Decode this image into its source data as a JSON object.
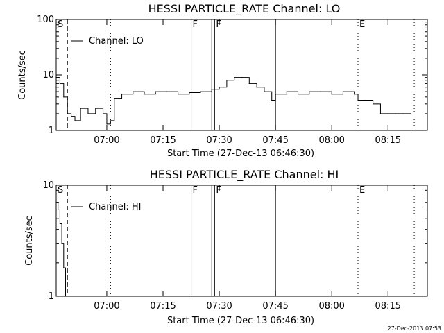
{
  "chart_data": [
    {
      "type": "line",
      "title": "HESSI PARTICLE_RATE Channel: LO",
      "xlabel": "Start Time (27-Dec-13 06:46:30)",
      "ylabel": "Counts/sec",
      "yscale": "log",
      "ylim": [
        1,
        100
      ],
      "xlim": [
        "06:46:30",
        "08:25:30"
      ],
      "x_tick_labels": [
        "07:00",
        "07:15",
        "07:30",
        "07:45",
        "08:00",
        "08:15"
      ],
      "y_tick_labels": [
        "1",
        "10",
        "100"
      ],
      "legend": {
        "label": "Channel: LO",
        "placement": "top-left"
      },
      "markers": [
        {
          "label": "S",
          "time": "06:46:30",
          "style": "solid"
        },
        {
          "label": "",
          "time": "06:49:30",
          "style": "dashed"
        },
        {
          "label": "",
          "time": "07:01:00",
          "style": "dotted"
        },
        {
          "label": "F",
          "time": "07:22:30",
          "style": "solid"
        },
        {
          "label": "",
          "time": "07:28:00",
          "style": "solid"
        },
        {
          "label": "F",
          "time": "07:28:45",
          "style": "solid"
        },
        {
          "label": "",
          "time": "07:45:00",
          "style": "solid"
        },
        {
          "label": "E",
          "time": "08:07:00",
          "style": "dotted"
        },
        {
          "label": "",
          "time": "08:22:00",
          "style": "dotted"
        }
      ],
      "series": [
        {
          "x": [
            "06:46:30",
            "06:47:30",
            "06:48:30",
            "06:49:30",
            "06:50:30",
            "06:51:30",
            "06:53:00",
            "06:55:00",
            "06:57:00",
            "06:59:00",
            "07:00:00",
            "07:01:00",
            "07:02:00",
            "07:04:00",
            "07:07:00",
            "07:10:00",
            "07:13:00",
            "07:16:00",
            "07:19:00",
            "07:22:00",
            "07:25:00",
            "07:28:00",
            "07:30:00",
            "07:32:00",
            "07:34:00",
            "07:36:00",
            "07:38:00",
            "07:40:00",
            "07:42:00",
            "07:44:00",
            "07:45:00",
            "07:48:00",
            "07:51:00",
            "07:54:00",
            "07:57:00",
            "08:00:00",
            "08:03:00",
            "08:06:00",
            "08:07:00",
            "08:09:00",
            "08:11:00",
            "08:13:00",
            "08:15:00",
            "08:17:00",
            "08:19:00",
            "08:21:00"
          ],
          "y": [
            9,
            7,
            4,
            2,
            1.8,
            1.5,
            2.5,
            2,
            2.5,
            2,
            1.3,
            1.5,
            3.8,
            4.5,
            5,
            4.5,
            5,
            5,
            4.5,
            4.8,
            5,
            5.5,
            6,
            8,
            9,
            9,
            7,
            6,
            5,
            3.5,
            4.5,
            5,
            4.5,
            5,
            5,
            4.5,
            5,
            4.5,
            3.5,
            3.5,
            3,
            2,
            2,
            2,
            2,
            2
          ]
        }
      ]
    },
    {
      "type": "line",
      "title": "HESSI PARTICLE_RATE Channel: HI",
      "xlabel": "Start Time (27-Dec-13 06:46:30)",
      "ylabel": "Counts/sec",
      "yscale": "log",
      "ylim": [
        1,
        10
      ],
      "xlim": [
        "06:46:30",
        "08:25:30"
      ],
      "x_tick_labels": [
        "07:00",
        "07:15",
        "07:30",
        "07:45",
        "08:00",
        "08:15"
      ],
      "y_tick_labels": [
        "1",
        "10"
      ],
      "legend": {
        "label": "Channel: HI",
        "placement": "top-left"
      },
      "markers": [
        {
          "label": "S",
          "time": "06:46:30",
          "style": "solid"
        },
        {
          "label": "",
          "time": "06:49:30",
          "style": "dashed"
        },
        {
          "label": "",
          "time": "07:01:00",
          "style": "dotted"
        },
        {
          "label": "F",
          "time": "07:22:30",
          "style": "solid"
        },
        {
          "label": "",
          "time": "07:28:00",
          "style": "solid"
        },
        {
          "label": "F",
          "time": "07:28:45",
          "style": "solid"
        },
        {
          "label": "",
          "time": "07:45:00",
          "style": "solid"
        },
        {
          "label": "E",
          "time": "08:07:00",
          "style": "dotted"
        },
        {
          "label": "",
          "time": "08:22:00",
          "style": "dotted"
        }
      ],
      "series": [
        {
          "x": [
            "06:46:30",
            "06:47:00",
            "06:47:30",
            "06:48:00",
            "06:48:30",
            "06:49:00"
          ],
          "y": [
            7,
            6,
            4.5,
            3,
            1.8,
            1
          ]
        }
      ]
    }
  ],
  "footer": {
    "timestamp": "27-Dec-2013 07:53"
  }
}
